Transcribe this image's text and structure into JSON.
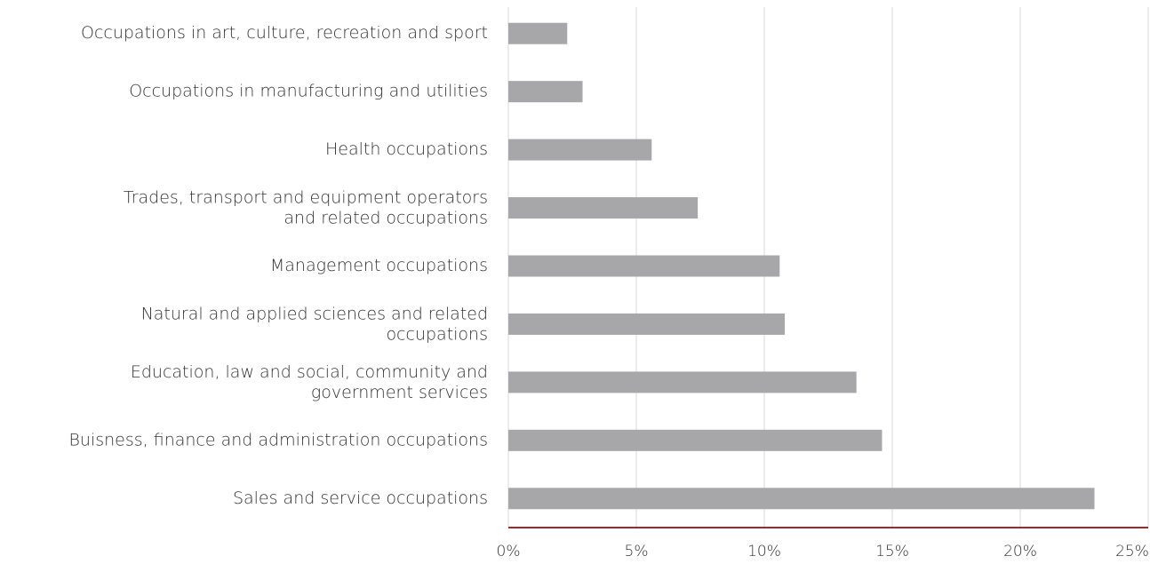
{
  "chart_data": {
    "type": "hbar",
    "categories": [
      "Occupations in art, culture, recreation and sport",
      "Occupations in manufacturing and utilities",
      "Health occupations",
      "Trades, transport and equipment operators\nand related occupations",
      "Management occupations",
      "Natural and applied sciences and related\noccupations",
      "Education, law and social, community and\ngovernment services",
      "Buisness, finance and administration occupations",
      "Sales and service occupations"
    ],
    "values": [
      2.3,
      2.9,
      5.6,
      7.4,
      10.6,
      10.8,
      13.6,
      14.6,
      22.9
    ],
    "color": "#a7a7aa",
    "axis_color": "#a0282a",
    "xlim": [
      0,
      25
    ],
    "xticks": [
      {
        "value": 0,
        "label": "0%"
      },
      {
        "value": 5,
        "label": "5%"
      },
      {
        "value": 10,
        "label": "10%"
      },
      {
        "value": 15,
        "label": "15%"
      },
      {
        "value": 20,
        "label": "20%"
      },
      {
        "value": 25,
        "label": "25%"
      }
    ],
    "grid": true
  }
}
